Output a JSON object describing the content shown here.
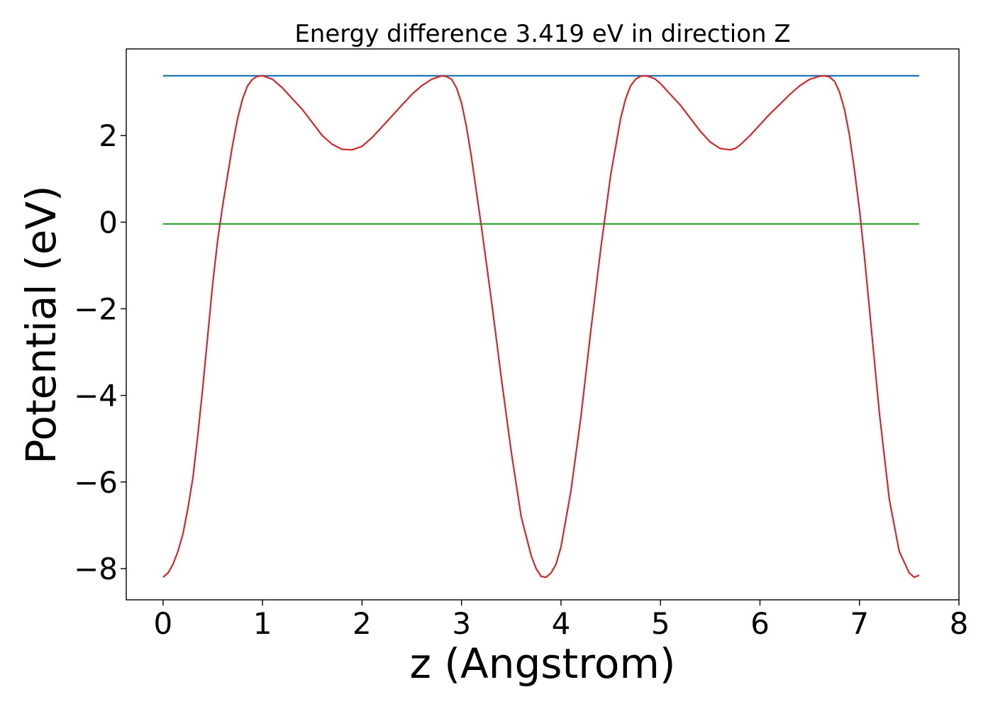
{
  "chart_data": {
    "type": "line",
    "title": "Energy difference 3.419 eV in direction Z",
    "xlabel": "z (Angstrom)",
    "ylabel": "Potential (eV)",
    "xlim": [
      -0.37,
      8.0
    ],
    "ylim": [
      -8.72,
      4.0
    ],
    "x_ticks": [
      0,
      1,
      2,
      3,
      4,
      5,
      6,
      7,
      8
    ],
    "x_tick_labels": [
      "0",
      "1",
      "2",
      "3",
      "4",
      "5",
      "6",
      "7",
      "8"
    ],
    "y_ticks": [
      -8,
      -6,
      -4,
      -2,
      0,
      2
    ],
    "y_tick_labels": [
      "−8",
      "−6",
      "−4",
      "−2",
      "0",
      "2"
    ],
    "grid": false,
    "series": [
      {
        "color": "#d62728",
        "x": [
          0.0,
          0.05,
          0.1,
          0.15,
          0.2,
          0.25,
          0.3,
          0.35,
          0.4,
          0.45,
          0.5,
          0.55,
          0.6,
          0.65,
          0.7,
          0.75,
          0.8,
          0.85,
          0.9,
          0.95,
          1.0,
          1.1,
          1.2,
          1.3,
          1.4,
          1.5,
          1.6,
          1.7,
          1.8,
          1.9,
          2.0,
          2.1,
          2.2,
          2.3,
          2.4,
          2.5,
          2.6,
          2.7,
          2.8,
          2.85,
          2.9,
          2.95,
          3.0,
          3.05,
          3.1,
          3.15,
          3.2,
          3.3,
          3.4,
          3.5,
          3.6,
          3.7,
          3.75,
          3.8,
          3.85,
          3.9,
          3.95,
          4.0,
          4.1,
          4.2,
          4.3,
          4.4,
          4.5,
          4.6,
          4.65,
          4.7,
          4.75,
          4.8,
          4.85,
          4.9,
          4.95,
          5.0,
          5.1,
          5.2,
          5.3,
          5.4,
          5.5,
          5.6,
          5.7,
          5.75,
          5.8,
          5.9,
          6.0,
          6.1,
          6.2,
          6.3,
          6.4,
          6.5,
          6.6,
          6.65,
          6.7,
          6.75,
          6.8,
          6.85,
          6.9,
          6.95,
          7.0,
          7.05,
          7.1,
          7.2,
          7.3,
          7.4,
          7.5,
          7.55,
          7.6
        ],
        "values": [
          -8.2,
          -8.1,
          -7.9,
          -7.6,
          -7.2,
          -6.6,
          -5.9,
          -4.9,
          -3.8,
          -2.6,
          -1.4,
          -0.4,
          0.4,
          1.1,
          1.8,
          2.4,
          2.85,
          3.15,
          3.3,
          3.37,
          3.38,
          3.3,
          3.1,
          2.85,
          2.6,
          2.3,
          2.0,
          1.8,
          1.68,
          1.67,
          1.75,
          1.95,
          2.2,
          2.45,
          2.7,
          2.95,
          3.15,
          3.3,
          3.38,
          3.36,
          3.3,
          3.1,
          2.75,
          2.2,
          1.5,
          0.7,
          -0.1,
          -1.8,
          -3.6,
          -5.3,
          -6.8,
          -7.7,
          -8.0,
          -8.18,
          -8.2,
          -8.1,
          -7.9,
          -7.5,
          -6.2,
          -4.5,
          -2.5,
          -0.6,
          1.1,
          2.4,
          2.85,
          3.15,
          3.3,
          3.37,
          3.38,
          3.35,
          3.3,
          3.2,
          2.95,
          2.7,
          2.4,
          2.1,
          1.85,
          1.7,
          1.67,
          1.7,
          1.78,
          2.0,
          2.25,
          2.5,
          2.72,
          2.95,
          3.15,
          3.3,
          3.37,
          3.38,
          3.35,
          3.25,
          3.0,
          2.6,
          2.0,
          1.2,
          0.3,
          -0.8,
          -2.0,
          -4.4,
          -6.4,
          -7.6,
          -8.1,
          -8.2,
          -8.15
        ]
      },
      {
        "color": "#1f77b4",
        "x": [
          0.0,
          7.6
        ],
        "values": [
          3.38,
          3.38
        ]
      },
      {
        "color": "#2ca02c",
        "x": [
          0.0,
          7.6
        ],
        "values": [
          -0.04,
          -0.04
        ]
      }
    ]
  }
}
